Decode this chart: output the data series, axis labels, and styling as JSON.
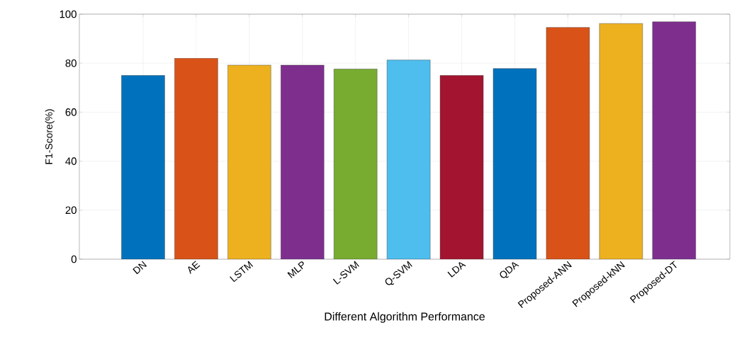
{
  "chart_data": {
    "type": "bar",
    "xlabel": "Different Algorithm Performance",
    "ylabel": "F1-Score(%)",
    "categories": [
      "DN",
      "AE",
      "LSTM",
      "MLP",
      "L-SVM",
      "Q-SVM",
      "LDA",
      "QDA",
      "Proposed-ANN",
      "Proposed-kNN",
      "Proposed-DT"
    ],
    "values": [
      75,
      82,
      79.2,
      79.2,
      77.6,
      81.3,
      75,
      77.8,
      94.6,
      96.2,
      96.9
    ],
    "colors": [
      "#0072bd",
      "#d95319",
      "#edb120",
      "#7e2f8e",
      "#77ac30",
      "#4dbeee",
      "#a2142f",
      "#0072bd",
      "#d95319",
      "#edb120",
      "#7e2f8e"
    ],
    "ylim": [
      0,
      100
    ],
    "yticks": [
      0,
      20,
      40,
      60,
      80,
      100
    ],
    "grid": true
  }
}
